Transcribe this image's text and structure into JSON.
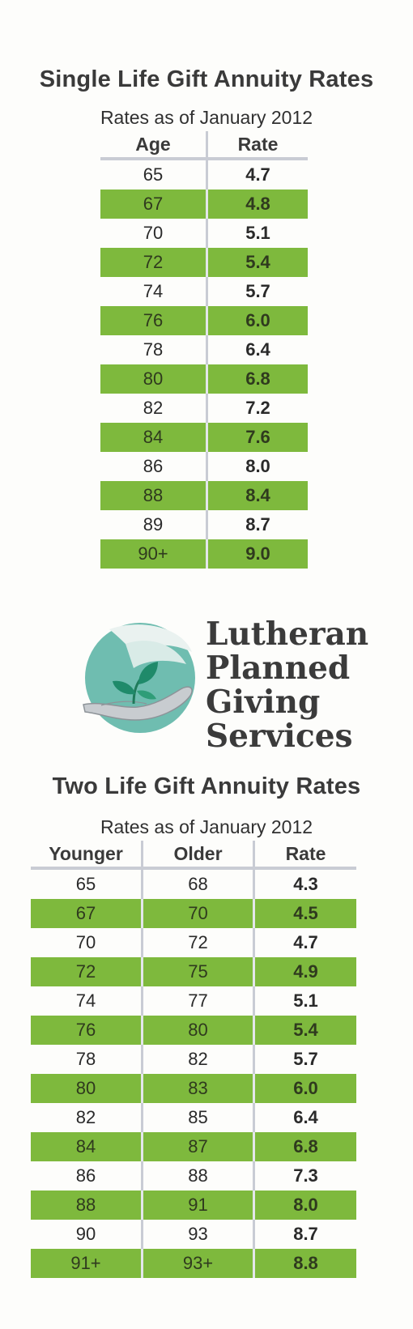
{
  "single": {
    "title": "Single Life Gift Annuity Rates",
    "subtitle": "Rates as of January 2012",
    "headers": {
      "age": "Age",
      "rate": "Rate"
    },
    "rows": [
      {
        "age": "65",
        "rate": "4.7"
      },
      {
        "age": "67",
        "rate": "4.8"
      },
      {
        "age": "70",
        "rate": "5.1"
      },
      {
        "age": "72",
        "rate": "5.4"
      },
      {
        "age": "74",
        "rate": "5.7"
      },
      {
        "age": "76",
        "rate": "6.0"
      },
      {
        "age": "78",
        "rate": "6.4"
      },
      {
        "age": "80",
        "rate": "6.8"
      },
      {
        "age": "82",
        "rate": "7.2"
      },
      {
        "age": "84",
        "rate": "7.6"
      },
      {
        "age": "86",
        "rate": "8.0"
      },
      {
        "age": "88",
        "rate": "8.4"
      },
      {
        "age": "89",
        "rate": "8.7"
      },
      {
        "age": "90+",
        "rate": "9.0"
      }
    ]
  },
  "logo": {
    "icon": "hand-with-seedling-icon",
    "line1": "Lutheran",
    "line2": "Planned",
    "line3": "Giving",
    "line4": "Services"
  },
  "two": {
    "title": "Two Life Gift Annuity Rates",
    "subtitle": "Rates as of January 2012",
    "headers": {
      "younger": "Younger",
      "older": "Older",
      "rate": "Rate"
    },
    "rows": [
      {
        "younger": "65",
        "older": "68",
        "rate": "4.3"
      },
      {
        "younger": "67",
        "older": "70",
        "rate": "4.5"
      },
      {
        "younger": "70",
        "older": "72",
        "rate": "4.7"
      },
      {
        "younger": "72",
        "older": "75",
        "rate": "4.9"
      },
      {
        "younger": "74",
        "older": "77",
        "rate": "5.1"
      },
      {
        "younger": "76",
        "older": "80",
        "rate": "5.4"
      },
      {
        "younger": "78",
        "older": "82",
        "rate": "5.7"
      },
      {
        "younger": "80",
        "older": "83",
        "rate": "6.0"
      },
      {
        "younger": "82",
        "older": "85",
        "rate": "6.4"
      },
      {
        "younger": "84",
        "older": "87",
        "rate": "6.8"
      },
      {
        "younger": "86",
        "older": "88",
        "rate": "7.3"
      },
      {
        "younger": "88",
        "older": "91",
        "rate": "8.0"
      },
      {
        "younger": "90",
        "older": "93",
        "rate": "8.7"
      },
      {
        "younger": "91+",
        "older": "93+",
        "rate": "8.8"
      }
    ]
  },
  "colors": {
    "row_shade": "#7eb93d",
    "divider": "#c9ccd4",
    "logo_teal": "#5fb3a4",
    "logo_leaf": "#1f8a6a"
  }
}
